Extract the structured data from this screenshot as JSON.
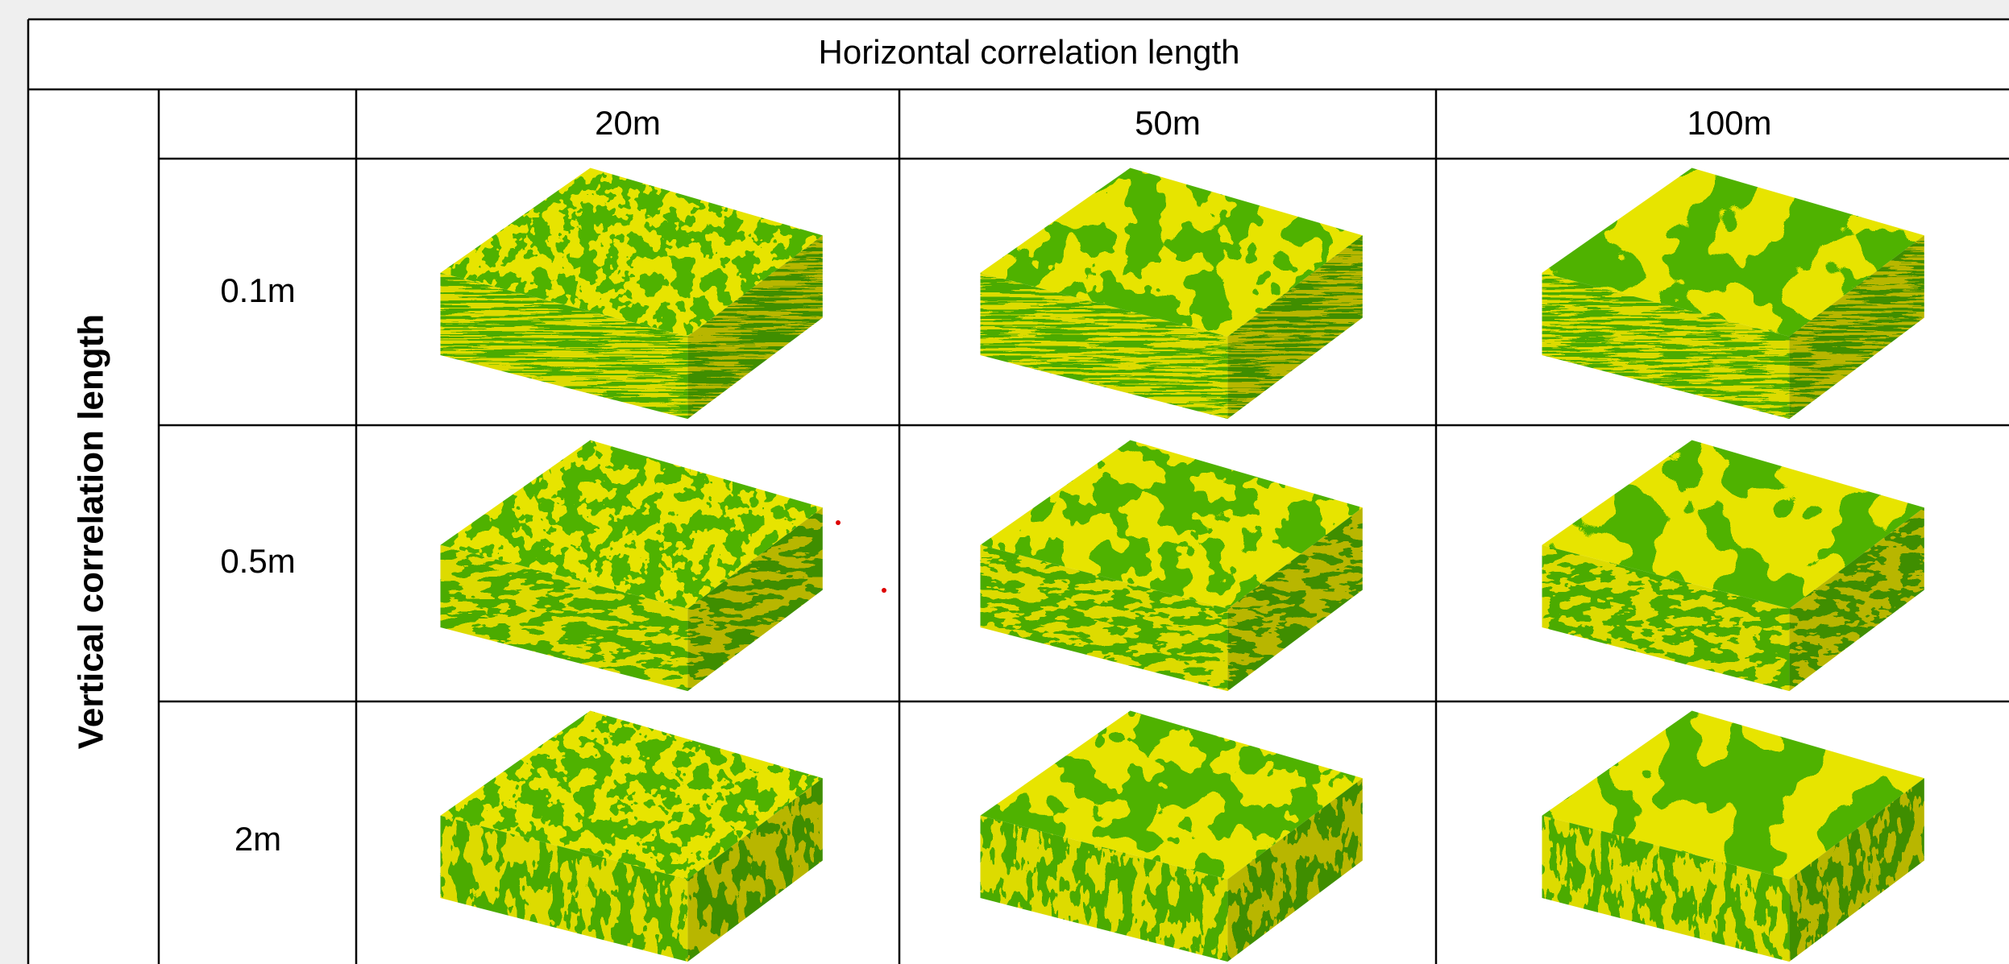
{
  "header": {
    "title": "Horizontal correlation length"
  },
  "row_header": "Vertical correlation length",
  "columns": [
    "20m",
    "50m",
    "100m"
  ],
  "rows": [
    "0.1m",
    "0.5m",
    "2m"
  ]
}
